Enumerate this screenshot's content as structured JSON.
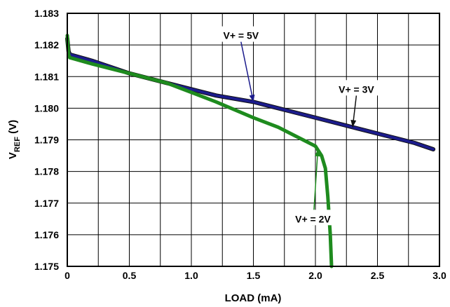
{
  "chart_data": {
    "type": "line",
    "xlabel": "LOAD (mA)",
    "ylabel": {
      "main": "V",
      "sub": "REF",
      "unit": " (V)"
    },
    "xlim": [
      0,
      3.0
    ],
    "ylim": [
      1.175,
      1.183
    ],
    "xticks": [
      0,
      0.25,
      0.5,
      0.75,
      1.0,
      1.25,
      1.5,
      1.75,
      2.0,
      2.25,
      2.5,
      2.75,
      3.0
    ],
    "xtick_labels": [
      "0",
      "",
      "0.5",
      "",
      "1.0",
      "",
      "1.5",
      "",
      "2.0",
      "",
      "2.5",
      "",
      "3.0"
    ],
    "yticks": [
      1.175,
      1.176,
      1.177,
      1.178,
      1.179,
      1.18,
      1.181,
      1.182,
      1.183
    ],
    "ytick_labels": [
      "1.175",
      "1.176",
      "1.177",
      "1.178",
      "1.179",
      "1.180",
      "1.181",
      "1.182",
      "1.183"
    ],
    "grid": true,
    "series": [
      {
        "name": "V+ = 3V",
        "color": "#111111",
        "x": [
          0.0,
          0.01,
          0.02,
          0.2,
          0.5,
          0.8,
          1.0,
          1.2,
          1.5,
          1.8,
          2.0,
          2.3,
          2.6,
          2.8,
          2.95
        ],
        "y": [
          1.1822,
          1.1818,
          1.1817,
          1.1815,
          1.1811,
          1.1808,
          1.1806,
          1.1804,
          1.1802,
          1.1799,
          1.1797,
          1.1794,
          1.1791,
          1.1789,
          1.1787
        ]
      },
      {
        "name": "V+ = 5V",
        "color": "#1c1c8c",
        "x": [
          0.0,
          0.01,
          0.02,
          0.2,
          0.5,
          0.8,
          1.0,
          1.2,
          1.5,
          1.8,
          2.0,
          2.3,
          2.6,
          2.8,
          2.95
        ],
        "y": [
          1.1821,
          1.1818,
          1.1817,
          1.1815,
          1.1811,
          1.1808,
          1.1806,
          1.1804,
          1.1802,
          1.1799,
          1.1797,
          1.1794,
          1.1791,
          1.1789,
          1.1787
        ]
      },
      {
        "name": "V+ = 2V",
        "color": "#1e8b1e",
        "x": [
          0.0,
          0.01,
          0.02,
          0.2,
          0.5,
          0.8,
          1.0,
          1.2,
          1.5,
          1.7,
          1.85,
          1.95,
          2.0,
          2.05,
          2.08,
          2.1,
          2.12,
          2.13
        ],
        "y": [
          1.1823,
          1.1817,
          1.1816,
          1.1814,
          1.1811,
          1.1808,
          1.1805,
          1.1802,
          1.1797,
          1.1794,
          1.1791,
          1.1789,
          1.1788,
          1.1785,
          1.1781,
          1.1772,
          1.176,
          1.175
        ]
      }
    ],
    "annotations": [
      {
        "text": "V+ = 5V",
        "series": 1,
        "label_xy": [
          1.4,
          1.1823
        ],
        "arrow_to": [
          1.5,
          1.1802
        ]
      },
      {
        "text": "V+ = 3V",
        "series": 0,
        "label_xy": [
          2.33,
          1.1806
        ],
        "arrow_to": [
          2.3,
          1.1794
        ]
      },
      {
        "text": "V+ = 2V",
        "series": 2,
        "label_xy": [
          1.98,
          1.1765
        ],
        "arrow_to": [
          2.02,
          1.1787
        ]
      }
    ]
  }
}
